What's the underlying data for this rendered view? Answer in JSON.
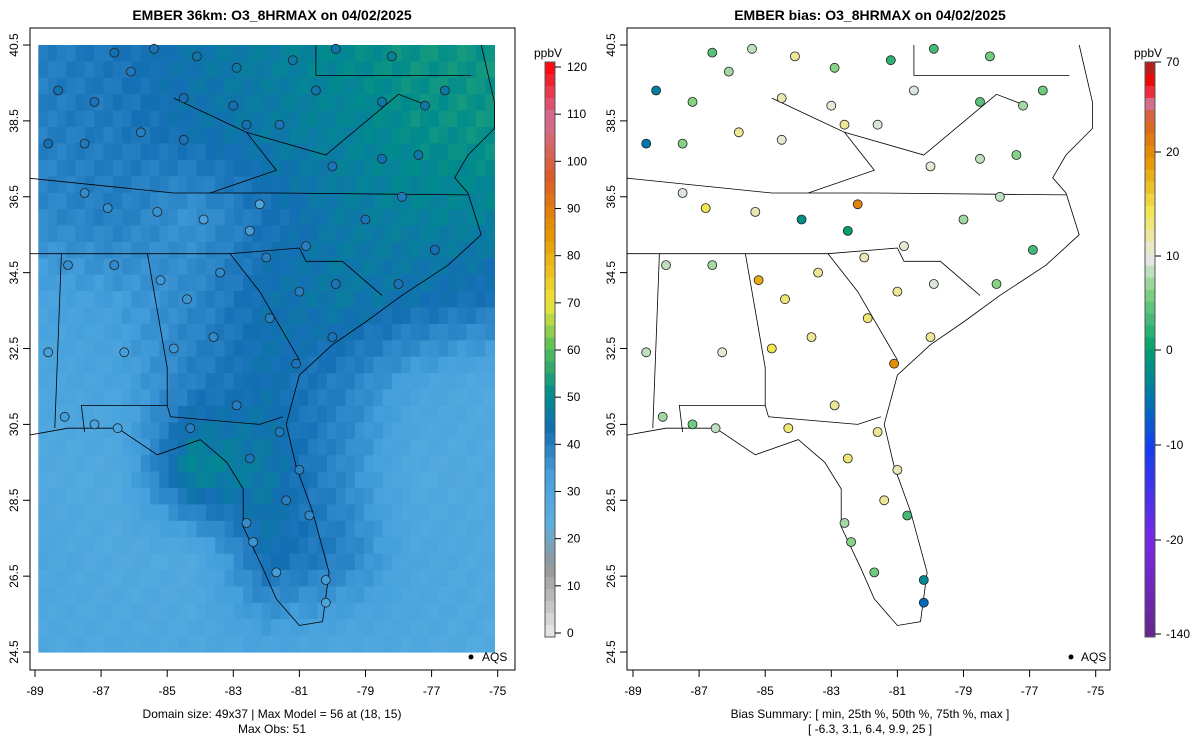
{
  "chart_data": [
    {
      "type": "heatmap",
      "title": "EMBER 36km: O3_8HRMAX on 04/02/2025",
      "x_ticks": [
        "-89",
        "-87",
        "-85",
        "-83",
        "-81",
        "-79",
        "-77",
        "-75"
      ],
      "x_tick_values": [
        -89,
        -87,
        -85,
        -83,
        -81,
        -79,
        -77,
        -75
      ],
      "y_ticks": [
        "24.5",
        "26.5",
        "28.5",
        "30.5",
        "32.5",
        "34.5",
        "36.5",
        "38.5",
        "40.5"
      ],
      "y_tick_values": [
        24.5,
        26.5,
        28.5,
        30.5,
        32.5,
        34.5,
        36.5,
        38.5,
        40.5
      ],
      "xlim": [
        -89.1,
        -74.7
      ],
      "ylim": [
        24.5,
        40.5
      ],
      "colorbar": {
        "unit": "ppbV",
        "ticks": [
          "0",
          "10",
          "20",
          "30",
          "40",
          "50",
          "60",
          "70",
          "80",
          "90",
          "100",
          "110",
          "120"
        ],
        "range": [
          0,
          120
        ]
      },
      "legend": "AQS",
      "footer_line1": "Domain size: 49x37 | Max Model = 56 at (18, 15)",
      "footer_line2": "Max Obs: 51",
      "model_grid_coarse": {
        "lon": [
          -88.8,
          -86.5,
          -84.2,
          -81.9,
          -79.6,
          -77.3,
          -75.2
        ],
        "lat": [
          40.5,
          38.3,
          36.1,
          33.9,
          31.7,
          29.5,
          27.3,
          24.8
        ],
        "values": [
          [
            40,
            42,
            45,
            47,
            50,
            52,
            52
          ],
          [
            40,
            41,
            44,
            46,
            48,
            51,
            52
          ],
          [
            38,
            40,
            36,
            42,
            46,
            48,
            48
          ],
          [
            32,
            34,
            38,
            44,
            46,
            44,
            42
          ],
          [
            30,
            32,
            40,
            44,
            40,
            32,
            28
          ],
          [
            28,
            28,
            50,
            46,
            38,
            28,
            28
          ],
          [
            30,
            28,
            28,
            44,
            40,
            30,
            28
          ],
          [
            29,
            29,
            29,
            32,
            30,
            29,
            28
          ]
        ]
      },
      "sites": "shared"
    },
    {
      "type": "scatter",
      "title": "EMBER bias: O3_8HRMAX on 04/02/2025",
      "x_ticks": [
        "-89",
        "-87",
        "-85",
        "-83",
        "-81",
        "-79",
        "-77",
        "-75"
      ],
      "y_ticks": [
        "24.5",
        "26.5",
        "28.5",
        "30.5",
        "32.5",
        "34.5",
        "36.5",
        "38.5",
        "40.5"
      ],
      "colorbar": {
        "unit": "ppbV",
        "ticks": [
          "70",
          "20",
          "10",
          "0",
          "-10",
          "-20",
          "-140"
        ]
      },
      "legend": "AQS",
      "footer_line1": "Bias Summary: [ min, 25th %, 50th %, 75th %, max ]",
      "footer_line2": "[ -6.3,   3.1,   6.4,   9.9,   25 ]"
    }
  ],
  "sites": [
    [
      -86.6,
      40.3,
      44,
      4
    ],
    [
      -85.4,
      40.4,
      42,
      8
    ],
    [
      -84.1,
      40.2,
      45,
      12
    ],
    [
      -82.9,
      39.9,
      46,
      6
    ],
    [
      -81.2,
      40.1,
      46,
      2
    ],
    [
      -79.9,
      40.4,
      45,
      3
    ],
    [
      -78.2,
      40.2,
      48,
      5
    ],
    [
      -88.3,
      39.3,
      44,
      -4
    ],
    [
      -87.2,
      39.0,
      42,
      6
    ],
    [
      -86.1,
      39.8,
      41,
      7
    ],
    [
      -84.5,
      39.1,
      43,
      11
    ],
    [
      -83.0,
      38.9,
      44,
      10
    ],
    [
      -80.5,
      39.3,
      45,
      9
    ],
    [
      -78.5,
      39.0,
      46,
      4
    ],
    [
      -77.2,
      38.9,
      45,
      7
    ],
    [
      -76.6,
      39.3,
      46,
      5
    ],
    [
      -88.6,
      37.9,
      43,
      -5
    ],
    [
      -87.5,
      37.9,
      41,
      6
    ],
    [
      -85.8,
      38.2,
      40,
      12
    ],
    [
      -84.5,
      38.0,
      42,
      10
    ],
    [
      -82.6,
      38.4,
      44,
      12
    ],
    [
      -81.6,
      38.4,
      42,
      9
    ],
    [
      -80.0,
      37.3,
      42,
      10
    ],
    [
      -78.5,
      37.5,
      44,
      8
    ],
    [
      -77.4,
      37.6,
      45,
      6
    ],
    [
      -87.5,
      36.6,
      38,
      9
    ],
    [
      -86.8,
      36.2,
      37,
      14
    ],
    [
      -85.3,
      36.1,
      36,
      11
    ],
    [
      -83.9,
      35.9,
      33,
      -2
    ],
    [
      -82.5,
      35.6,
      34,
      0
    ],
    [
      -82.2,
      36.3,
      30,
      25
    ],
    [
      -80.8,
      35.2,
      40,
      10
    ],
    [
      -79.0,
      35.9,
      42,
      7
    ],
    [
      -77.9,
      36.5,
      41,
      8
    ],
    [
      -76.9,
      35.1,
      43,
      3
    ],
    [
      -88.0,
      34.7,
      37,
      8
    ],
    [
      -86.6,
      34.7,
      38,
      7
    ],
    [
      -85.2,
      34.3,
      35,
      18
    ],
    [
      -84.4,
      33.8,
      36,
      13
    ],
    [
      -83.4,
      34.5,
      38,
      12
    ],
    [
      -82.0,
      34.9,
      40,
      11
    ],
    [
      -81.0,
      34.0,
      40,
      12
    ],
    [
      -79.9,
      34.2,
      42,
      9
    ],
    [
      -78.0,
      34.2,
      42,
      6
    ],
    [
      -88.6,
      32.4,
      33,
      8
    ],
    [
      -86.3,
      32.4,
      34,
      10
    ],
    [
      -84.8,
      32.5,
      36,
      14
    ],
    [
      -83.6,
      32.8,
      38,
      12
    ],
    [
      -81.9,
      33.3,
      40,
      13
    ],
    [
      -81.1,
      32.1,
      42,
      20
    ],
    [
      -80.0,
      32.8,
      42,
      12
    ],
    [
      -88.1,
      30.7,
      34,
      7
    ],
    [
      -87.2,
      30.5,
      32,
      5
    ],
    [
      -86.5,
      30.4,
      32,
      8
    ],
    [
      -84.3,
      30.4,
      40,
      13
    ],
    [
      -82.9,
      31.0,
      40,
      12
    ],
    [
      -81.6,
      30.3,
      41,
      12
    ],
    [
      -81.0,
      29.3,
      40,
      11
    ],
    [
      -82.5,
      29.6,
      42,
      13
    ],
    [
      -81.4,
      28.5,
      40,
      12
    ],
    [
      -80.7,
      28.1,
      38,
      3
    ],
    [
      -82.6,
      27.9,
      37,
      7
    ],
    [
      -82.4,
      27.4,
      36,
      6
    ],
    [
      -81.7,
      26.6,
      34,
      5
    ],
    [
      -80.2,
      26.4,
      34,
      -3
    ],
    [
      -80.2,
      25.8,
      32,
      -6
    ]
  ]
}
